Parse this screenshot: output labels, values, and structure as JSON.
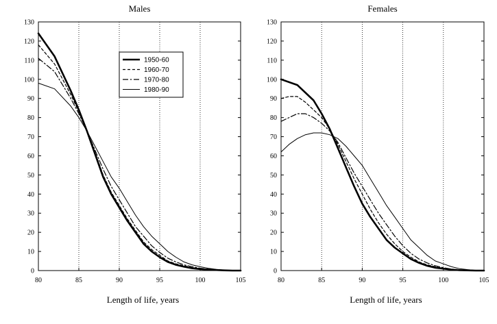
{
  "chart_data": [
    {
      "type": "line",
      "title": "Males",
      "xlabel": "Length of life, years",
      "ylabel": "",
      "xlim": [
        80,
        105
      ],
      "ylim": [
        0,
        130
      ],
      "xticks": [
        80,
        85,
        90,
        95,
        100,
        105
      ],
      "yticks": [
        0,
        10,
        20,
        30,
        40,
        50,
        60,
        70,
        80,
        90,
        100,
        110,
        120,
        130
      ],
      "vlines": [
        85,
        90,
        95,
        100
      ],
      "legend": {
        "position": "top-right",
        "entries": [
          "1950-60",
          "1960-70",
          "1970-80",
          "1980-90"
        ]
      },
      "series": [
        {
          "name": "1950-60",
          "style": "thick-solid",
          "x": [
            80,
            82,
            84,
            85,
            86,
            87,
            88,
            89,
            90,
            91,
            92,
            93,
            94,
            95,
            96,
            97,
            98,
            99,
            100,
            101,
            102,
            103,
            104,
            105
          ],
          "y": [
            124,
            112,
            94,
            84,
            73,
            61,
            49,
            40,
            33,
            26,
            20,
            14,
            10,
            7,
            4.5,
            3,
            2,
            1.2,
            0.8,
            0.5,
            0.3,
            0.1,
            0,
            0
          ]
        },
        {
          "name": "1960-70",
          "style": "dashed",
          "x": [
            80,
            82,
            84,
            85,
            86,
            87,
            88,
            89,
            90,
            91,
            92,
            93,
            94,
            95,
            96,
            97,
            98,
            99,
            100,
            101,
            102,
            103,
            104,
            105
          ],
          "y": [
            118,
            108,
            92,
            83,
            73,
            62,
            50,
            41,
            34,
            27,
            21,
            15,
            11,
            8,
            5,
            3.5,
            2.5,
            1.5,
            1,
            0.6,
            0.3,
            0.1,
            0,
            0
          ]
        },
        {
          "name": "1970-80",
          "style": "dash-dot",
          "x": [
            80,
            82,
            84,
            85,
            86,
            87,
            88,
            89,
            90,
            91,
            92,
            93,
            94,
            95,
            96,
            97,
            98,
            99,
            100,
            101,
            102,
            103,
            104,
            105
          ],
          "y": [
            111,
            104,
            90,
            82,
            73,
            63,
            53,
            44,
            37,
            30,
            23,
            18,
            13,
            9.5,
            6.5,
            4.5,
            3,
            2,
            1.2,
            0.7,
            0.4,
            0.2,
            0,
            0
          ]
        },
        {
          "name": "1980-90",
          "style": "thin-solid",
          "x": [
            80,
            82,
            84,
            85,
            86,
            87,
            88,
            89,
            90,
            91,
            92,
            93,
            94,
            95,
            96,
            97,
            98,
            99,
            100,
            101,
            102,
            103,
            104,
            105
          ],
          "y": [
            98,
            95,
            86,
            80,
            73,
            65,
            57,
            49,
            43,
            36,
            29,
            23,
            18,
            14,
            10,
            7,
            4.5,
            3,
            2,
            1.2,
            0.6,
            0.3,
            0,
            0
          ]
        }
      ]
    },
    {
      "type": "line",
      "title": "Females",
      "xlabel": "Length of life, years",
      "ylabel": "",
      "xlim": [
        80,
        105
      ],
      "ylim": [
        0,
        130
      ],
      "xticks": [
        80,
        85,
        90,
        95,
        100,
        105
      ],
      "yticks": [
        0,
        10,
        20,
        30,
        40,
        50,
        60,
        70,
        80,
        90,
        100,
        110,
        120,
        130
      ],
      "vlines": [
        85,
        90,
        95,
        100
      ],
      "series": [
        {
          "name": "1950-60",
          "style": "thick-solid",
          "x": [
            80,
            82,
            84,
            85,
            86,
            87,
            88,
            89,
            90,
            91,
            92,
            93,
            94,
            95,
            96,
            97,
            98,
            99,
            100,
            101,
            102,
            103,
            104,
            105
          ],
          "y": [
            100,
            97,
            89,
            82,
            74,
            64,
            54,
            44,
            35,
            28,
            22,
            16,
            12,
            9,
            6,
            4,
            2.5,
            1.5,
            1,
            0.5,
            0.2,
            0.1,
            0,
            0
          ]
        },
        {
          "name": "1960-70",
          "style": "dashed",
          "x": [
            80,
            81,
            82,
            83,
            84,
            85,
            86,
            87,
            88,
            89,
            90,
            91,
            92,
            93,
            94,
            95,
            96,
            97,
            98,
            99,
            100,
            101,
            102,
            103,
            104,
            105
          ],
          "y": [
            90,
            91,
            91,
            88,
            84,
            80,
            74,
            66,
            57,
            48,
            40,
            32,
            25,
            19,
            14,
            10,
            7,
            4.5,
            3,
            2,
            1.2,
            0.6,
            0.3,
            0.1,
            0,
            0
          ]
        },
        {
          "name": "1970-80",
          "style": "dash-dot",
          "x": [
            80,
            81,
            82,
            83,
            84,
            85,
            86,
            87,
            88,
            89,
            90,
            91,
            92,
            93,
            94,
            95,
            96,
            97,
            98,
            99,
            100,
            101,
            102,
            103,
            104,
            105
          ],
          "y": [
            78,
            80,
            82,
            82,
            80,
            77,
            73,
            67,
            59,
            51,
            44,
            37,
            30,
            24,
            18,
            13,
            9,
            6,
            4,
            2.5,
            1.5,
            0.8,
            0.4,
            0.1,
            0,
            0
          ]
        },
        {
          "name": "1980-90",
          "style": "thin-solid",
          "x": [
            80,
            81,
            82,
            83,
            84,
            85,
            86,
            87,
            88,
            89,
            90,
            91,
            92,
            93,
            94,
            95,
            96,
            97,
            98,
            99,
            100,
            101,
            102,
            103,
            104,
            105
          ],
          "y": [
            62,
            66,
            69,
            71,
            72,
            72,
            71,
            69,
            65,
            60,
            55,
            48,
            41,
            34,
            28,
            22,
            16,
            12,
            8,
            5,
            3.5,
            2,
            1,
            0.5,
            0.1,
            0
          ]
        }
      ]
    }
  ]
}
